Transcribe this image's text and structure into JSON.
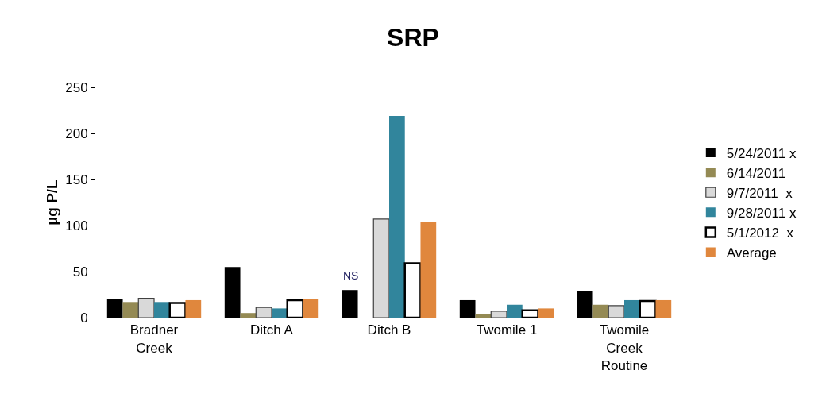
{
  "chart_data": {
    "type": "bar",
    "title": "SRP",
    "ylabel": "µg P/L",
    "categories": [
      "Bradner Creek",
      "Ditch A",
      "Ditch B",
      "Twomile 1",
      "Twomile Creek Routine"
    ],
    "series": [
      {
        "name": "5/24/2011 x",
        "color": "#000000",
        "values": [
          20,
          55,
          30,
          19,
          29
        ]
      },
      {
        "name": "6/14/2011",
        "color": "#948a54",
        "values": [
          17,
          5,
          null,
          4,
          14
        ]
      },
      {
        "name": "9/7/2011  x",
        "color": "#d9d9d9",
        "values": [
          21,
          11,
          107,
          7,
          13
        ]
      },
      {
        "name": "9/28/2011 x",
        "color": "#31859c",
        "values": [
          17,
          10,
          219,
          14,
          19
        ]
      },
      {
        "name": "5/1/2012  x",
        "color": "#ffffff",
        "values": [
          16,
          19,
          59,
          8,
          18
        ]
      },
      {
        "name": "Average",
        "color": "#e0873d",
        "values": [
          19,
          20,
          104,
          10,
          19
        ]
      }
    ],
    "annotations": [
      "NS"
    ],
    "ylim": [
      0,
      250
    ],
    "yticks": [
      0,
      50,
      100,
      150,
      200,
      250
    ],
    "grid": false,
    "legend": "right"
  }
}
